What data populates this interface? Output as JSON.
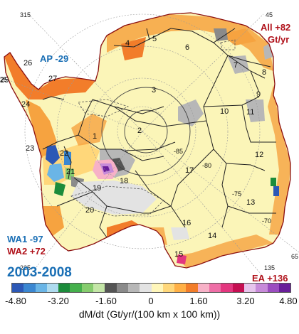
{
  "period": "2003-2008",
  "longitude_labels": [
    {
      "id": "315",
      "text": "315"
    },
    {
      "id": "45",
      "text": "45"
    },
    {
      "id": "225",
      "text": "225"
    },
    {
      "id": "135",
      "text": "135"
    },
    {
      "id": "25",
      "text": "25"
    },
    {
      "id": "65",
      "text": "65"
    }
  ],
  "latitude_labels": [
    "-85",
    "-80",
    "-75",
    "-70"
  ],
  "basins": [
    "1",
    "2",
    "3",
    "4",
    "5",
    "6",
    "7",
    "8",
    "9",
    "10",
    "11",
    "12",
    "13",
    "14",
    "15",
    "16",
    "17",
    "18",
    "19",
    "20",
    "21",
    "22",
    "23",
    "24",
    "25",
    "26",
    "27"
  ],
  "regions": {
    "all": {
      "line1": "All +82",
      "line2": "Gt/yr"
    },
    "ap": "AP -29",
    "wa1": "WA1 -97",
    "wa2": "WA2 +72",
    "ea": "EA +136"
  },
  "colorbar": {
    "label": "dM/dt (Gt/yr/(100 km x 100 km))",
    "ticks": [
      "-4.80",
      "-3.20",
      "-1.60",
      "0",
      "1.60",
      "3.20",
      "4.80"
    ],
    "colors": [
      "#2c58b6",
      "#3b87d1",
      "#6ab5e6",
      "#aedbef",
      "#1c8c3b",
      "#45b04c",
      "#86cc6e",
      "#c4e6a7",
      "#555555",
      "#8a8a8a",
      "#b7b7b7",
      "#e3e3e3",
      "#fff6ba",
      "#ffd77a",
      "#ffb046",
      "#f27d2a",
      "#f7b1c7",
      "#ee6ea6",
      "#e3377f",
      "#c50f52",
      "#e6c4ec",
      "#c78ad9",
      "#9b4dc0",
      "#6a1e9a"
    ]
  }
}
